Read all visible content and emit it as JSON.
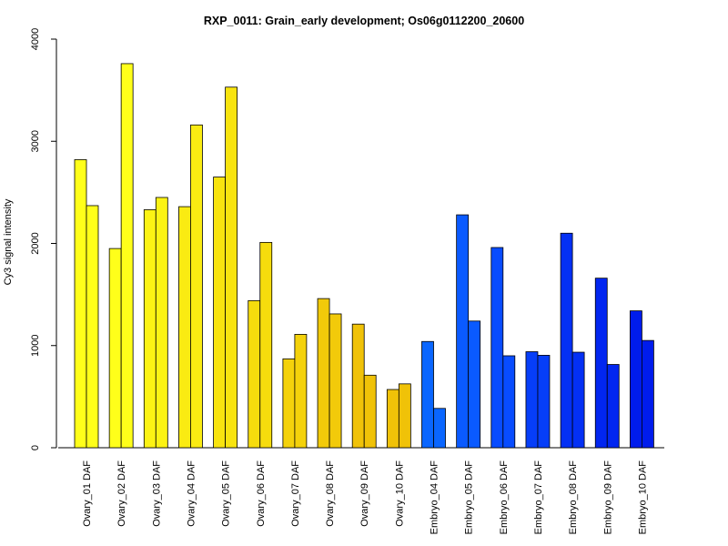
{
  "chart_data": {
    "type": "bar",
    "title": "RXP_0011: Grain_early development; Os06g0112200_20600",
    "ylabel": "Cy3 signal intensity",
    "xlabel": "",
    "ylim": [
      0,
      4000
    ],
    "yticks": [
      0,
      1000,
      2000,
      3000,
      4000
    ],
    "grid": false,
    "categories": [
      "Ovary_01 DAF",
      "Ovary_02 DAF",
      "Ovary_03 DAF",
      "Ovary_04 DAF",
      "Ovary_05 DAF",
      "Ovary_06 DAF",
      "Ovary_07 DAF",
      "Ovary_08 DAF",
      "Ovary_09 DAF",
      "Ovary_10 DAF",
      "Embryo_04 DAF",
      "Embryo_05 DAF",
      "Embryo_06 DAF",
      "Embryo_07 DAF",
      "Embryo_08 DAF",
      "Embryo_09 DAF",
      "Embryo_10 DAF"
    ],
    "series": [
      {
        "values": [
          2820,
          1950,
          2330,
          2360,
          2650,
          1440,
          870,
          1460,
          1210,
          570,
          1040,
          2280,
          1960,
          940,
          2100,
          1660,
          1340
        ]
      },
      {
        "values": [
          2370,
          3760,
          2450,
          3160,
          3530,
          2010,
          1110,
          1310,
          710,
          625,
          385,
          1240,
          900,
          905,
          935,
          815,
          1050
        ]
      }
    ],
    "colors": [
      "#ffff1a",
      "#ffff1a",
      "#fcf314",
      "#faeb12",
      "#f8e40f",
      "#f6dc0d",
      "#f4d20b",
      "#f2ca0a",
      "#f0c208",
      "#f0c208",
      "#0a66ff",
      "#0a5aff",
      "#084cff",
      "#063ef8",
      "#0430f4",
      "#0226f0",
      "#001cec"
    ]
  }
}
